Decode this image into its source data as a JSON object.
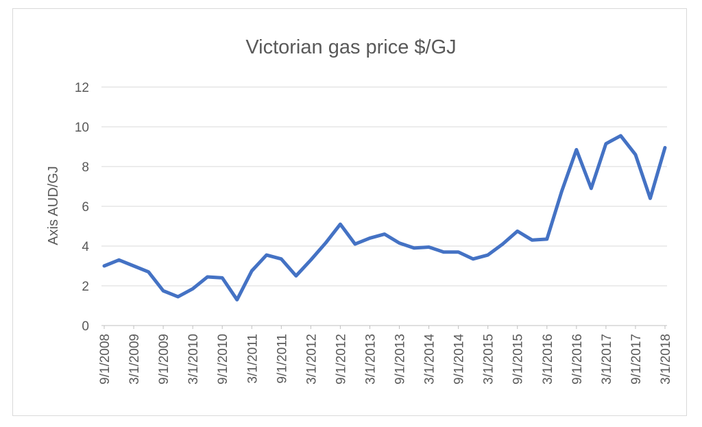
{
  "chart_data": {
    "type": "line",
    "title": "Victorian gas price $/GJ",
    "xlabel": "",
    "ylabel": "Axis AUD/GJ",
    "ylim": [
      0,
      12
    ],
    "y_ticks": [
      "0",
      "2",
      "4",
      "6",
      "8",
      "10",
      "12"
    ],
    "grid": "horizontal",
    "x_tick_labels": [
      "9/1/2008",
      "3/1/2009",
      "9/1/2009",
      "3/1/2010",
      "9/1/2010",
      "3/1/2011",
      "9/1/2011",
      "3/1/2012",
      "9/1/2012",
      "3/1/2013",
      "9/1/2013",
      "3/1/2014",
      "9/1/2014",
      "3/1/2015",
      "9/1/2015",
      "3/1/2016",
      "9/1/2016",
      "3/1/2017",
      "9/1/2017",
      "3/1/2018"
    ],
    "line_color": "#4472c4",
    "series": [
      {
        "x": [
          "9/1/2008",
          "12/1/2008",
          "3/1/2009",
          "6/1/2009",
          "9/1/2009",
          "12/1/2009",
          "3/1/2010",
          "6/1/2010",
          "9/1/2010",
          "12/1/2010",
          "3/1/2011",
          "6/1/2011",
          "9/1/2011",
          "12/1/2011",
          "3/1/2012",
          "6/1/2012",
          "9/1/2012",
          "12/1/2012",
          "3/1/2013",
          "6/1/2013",
          "9/1/2013",
          "12/1/2013",
          "3/1/2014",
          "6/1/2014",
          "9/1/2014",
          "12/1/2014",
          "3/1/2015",
          "6/1/2015",
          "9/1/2015",
          "12/1/2015",
          "3/1/2016",
          "6/1/2016",
          "9/1/2016",
          "12/1/2016",
          "3/1/2017",
          "6/1/2017",
          "9/1/2017",
          "12/1/2017",
          "3/1/2018"
        ],
        "values": [
          3.0,
          3.3,
          3.0,
          2.7,
          1.75,
          1.45,
          1.85,
          2.45,
          2.4,
          1.3,
          2.75,
          3.55,
          3.35,
          2.5,
          3.3,
          4.15,
          5.1,
          4.1,
          4.4,
          4.6,
          4.15,
          3.9,
          3.95,
          3.7,
          3.7,
          3.35,
          3.55,
          4.1,
          4.75,
          4.3,
          4.35,
          6.75,
          8.85,
          6.9,
          9.15,
          9.55,
          8.6,
          6.4,
          8.95
        ]
      }
    ]
  }
}
